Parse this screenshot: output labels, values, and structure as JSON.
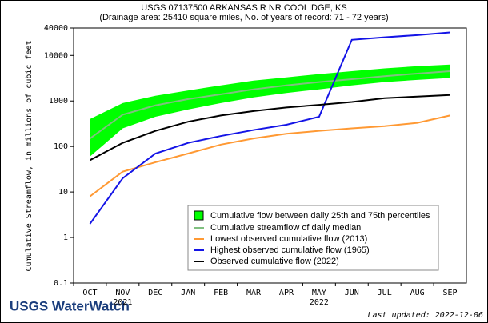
{
  "chart_data": {
    "type": "line",
    "title": "USGS 07137500 ARKANSAS R NR COOLIDGE, KS",
    "subtitle": "(Drainage area: 25410 square miles, No. of years of record: 71 - 72 years)",
    "y_label": "Cumulative Streamflow, in millions of cubic feet",
    "log_scale": true,
    "categories": [
      "OCT",
      "NOV",
      "DEC",
      "JAN",
      "FEB",
      "MAR",
      "APR",
      "MAY",
      "JUN",
      "JUL",
      "AUG",
      "SEP"
    ],
    "year_labels": [
      {
        "category": 1,
        "label": "2021"
      },
      {
        "category": 7,
        "label": "2022"
      }
    ],
    "ylim": [
      0.1,
      40000
    ],
    "yticks": [
      0.1,
      1,
      10,
      100,
      1000,
      10000,
      40000
    ],
    "band": {
      "name": "Cumulative flow between daily 25th and 75th percentiles",
      "color": "#00ff00",
      "lower": [
        60,
        250,
        450,
        650,
        900,
        1200,
        1500,
        1800,
        2200,
        2600,
        2900,
        3200
      ],
      "upper": [
        400,
        900,
        1300,
        1700,
        2200,
        2800,
        3300,
        3900,
        4500,
        5200,
        5800,
        6300
      ]
    },
    "series": [
      {
        "name": "Cumulative streamflow of daily median",
        "color": "#80c080",
        "values": [
          150,
          500,
          800,
          1100,
          1400,
          1800,
          2200,
          2600,
          3000,
          3500,
          4000,
          4500
        ]
      },
      {
        "name": "Lowest observed cumulative flow (2013)",
        "color": "#ff9933",
        "values": [
          8,
          28,
          45,
          70,
          110,
          150,
          190,
          220,
          250,
          280,
          330,
          480
        ]
      },
      {
        "name": "Highest observed cumulative flow (1965)",
        "color": "#1414e6",
        "values": [
          2,
          20,
          70,
          120,
          170,
          230,
          300,
          450,
          22000,
          25000,
          28000,
          32000
        ]
      },
      {
        "name": "Observed cumulative flow (2022)",
        "color": "#000000",
        "values": [
          50,
          120,
          220,
          350,
          480,
          600,
          720,
          820,
          950,
          1150,
          1250,
          1350
        ]
      }
    ],
    "logo_text": "USGS WaterWatch",
    "last_updated": "Last updated: 2022-12-06"
  }
}
